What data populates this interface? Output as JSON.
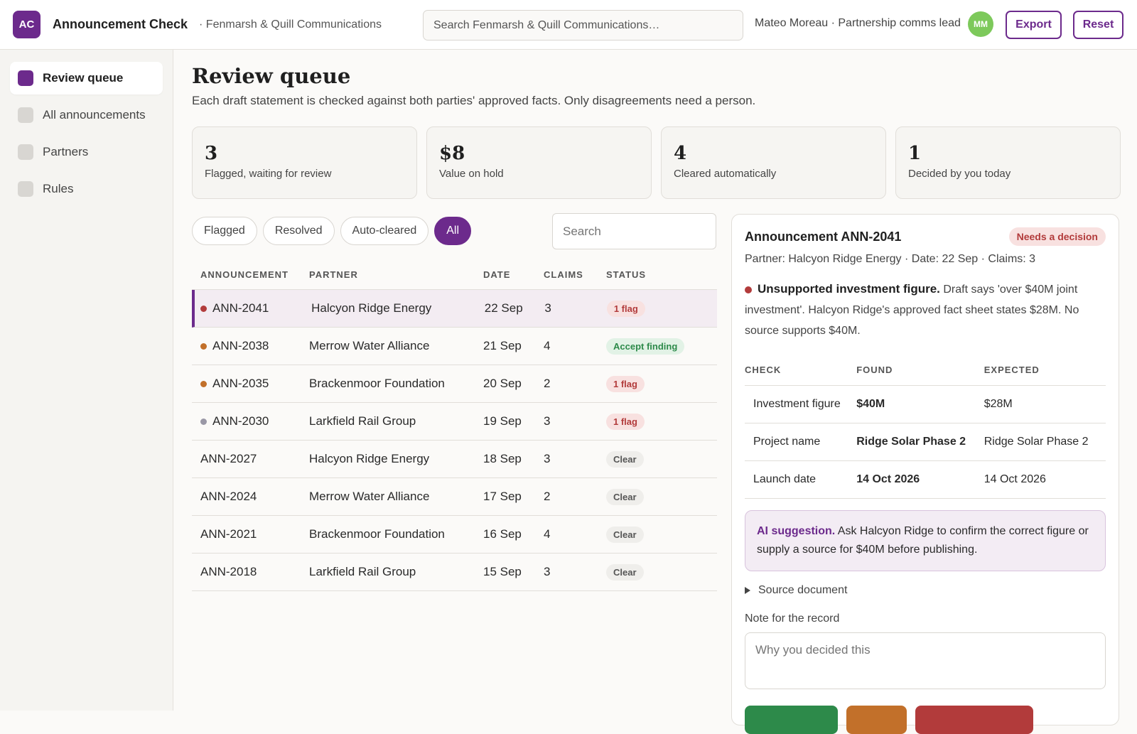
{
  "header": {
    "logo_text": "AC",
    "app_title": "Announcement Check",
    "org": "· Fenmarsh & Quill Communications",
    "search_placeholder": "Search Fenmarsh & Quill Communications…",
    "user": "Mateo Moreau · Partnership comms lead",
    "avatar_initials": "MM",
    "export_label": "Export",
    "reset_label": "Reset"
  },
  "sidebar": {
    "items": [
      {
        "label": "Review queue",
        "active": true
      },
      {
        "label": "All announcements",
        "active": false
      },
      {
        "label": "Partners",
        "active": false
      },
      {
        "label": "Rules",
        "active": false
      }
    ]
  },
  "main": {
    "title": "Review queue",
    "subtitle": "Each draft statement is checked against both parties' approved facts. Only disagreements need a person.",
    "stats": [
      {
        "value": "3",
        "label": "Flagged, waiting for review"
      },
      {
        "value": "$8",
        "label": "Value on hold"
      },
      {
        "value": "4",
        "label": "Cleared automatically"
      },
      {
        "value": "1",
        "label": "Decided by you today"
      }
    ],
    "filters": [
      {
        "label": "Flagged",
        "active": false
      },
      {
        "label": "Resolved",
        "active": false
      },
      {
        "label": "Auto-cleared",
        "active": false
      },
      {
        "label": "All",
        "active": true
      }
    ],
    "search_placeholder": "Search",
    "columns": [
      "ANNOUNCEMENT",
      "PARTNER",
      "DATE",
      "CLAIMS",
      "STATUS"
    ],
    "rows": [
      {
        "id": "ANN-2041",
        "partner": "Halcyon Ridge Energy",
        "date": "22 Sep",
        "claims": "3",
        "status": "1 flag",
        "status_type": "flag",
        "dot": "#b23b3b",
        "selected": true
      },
      {
        "id": "ANN-2038",
        "partner": "Merrow Water Alliance",
        "date": "21 Sep",
        "claims": "4",
        "status": "Accept finding",
        "status_type": "accept",
        "dot": "#c2702a",
        "selected": false
      },
      {
        "id": "ANN-2035",
        "partner": "Brackenmoor Foundation",
        "date": "20 Sep",
        "claims": "2",
        "status": "1 flag",
        "status_type": "flag",
        "dot": "#c2702a",
        "selected": false
      },
      {
        "id": "ANN-2030",
        "partner": "Larkfield Rail Group",
        "date": "19 Sep",
        "claims": "3",
        "status": "1 flag",
        "status_type": "flag",
        "dot": "#9a98a6",
        "selected": false
      },
      {
        "id": "ANN-2027",
        "partner": "Halcyon Ridge Energy",
        "date": "18 Sep",
        "claims": "3",
        "status": "Clear",
        "status_type": "clear",
        "dot": "",
        "selected": false
      },
      {
        "id": "ANN-2024",
        "partner": "Merrow Water Alliance",
        "date": "17 Sep",
        "claims": "2",
        "status": "Clear",
        "status_type": "clear",
        "dot": "",
        "selected": false
      },
      {
        "id": "ANN-2021",
        "partner": "Brackenmoor Foundation",
        "date": "16 Sep",
        "claims": "4",
        "status": "Clear",
        "status_type": "clear",
        "dot": "",
        "selected": false
      },
      {
        "id": "ANN-2018",
        "partner": "Larkfield Rail Group",
        "date": "15 Sep",
        "claims": "3",
        "status": "Clear",
        "status_type": "clear",
        "dot": "",
        "selected": false
      }
    ]
  },
  "detail": {
    "title": "Announcement ANN-2041",
    "badge": "Needs a decision",
    "meta": "Partner: Halcyon Ridge Energy · Date: 22 Sep · Claims: 3",
    "finding_title": "Unsupported investment figure.",
    "finding_text": " Draft says 'over $40M joint investment'. Halcyon Ridge's approved fact sheet states $28M. No source supports $40M.",
    "check_columns": [
      "CHECK",
      "FOUND",
      "EXPECTED"
    ],
    "checks": [
      {
        "check": "Investment figure",
        "found": "$40M",
        "expected": "$28M",
        "ok": false
      },
      {
        "check": "Project name",
        "found": "Ridge Solar Phase 2",
        "expected": "Ridge Solar Phase 2",
        "ok": true
      },
      {
        "check": "Launch date",
        "found": "14 Oct 2026",
        "expected": "14 Oct 2026",
        "ok": true
      }
    ],
    "ai_title": "AI suggestion.",
    "ai_text": " Ask Halcyon Ridge to confirm the correct figure or supply a source for $40M before publishing.",
    "source_label": "Source document",
    "note_label": "Note for the record",
    "note_placeholder": "Why you decided this"
  },
  "colors": {
    "accent": "#6c2a8c",
    "danger": "#b23b3b",
    "success": "#2d8a4a",
    "warn": "#c2702a"
  }
}
